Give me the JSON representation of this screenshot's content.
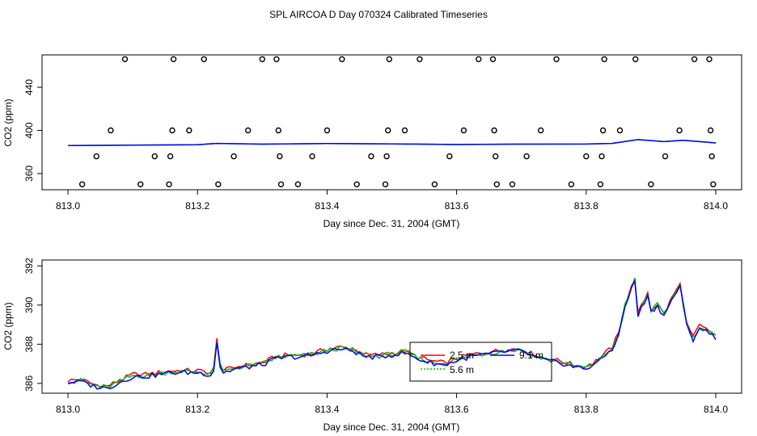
{
  "title": "SPL AIRCOA D  Day 070324  Calibrated Timeseries",
  "colors": {
    "series_2_5m": "#ff0000",
    "series_5_6m": "#00c000",
    "series_9_1m": "#0000ff",
    "points": "#000000"
  },
  "chart_data": [
    {
      "type": "scatter",
      "xlabel": "Day since Dec. 31, 2004 (GMT)",
      "ylabel": "CO2 (ppm)",
      "xlim": [
        813.0,
        814.0
      ],
      "ylim": [
        345,
        470
      ],
      "x_ticks": [
        "813.0",
        "813.2",
        "813.4",
        "813.6",
        "813.8",
        "814.0"
      ],
      "y_ticks": [
        "360",
        "400",
        "440"
      ],
      "grid": false,
      "series_line": {
        "x": [
          813.0,
          813.1,
          813.2,
          813.23,
          813.3,
          813.4,
          813.5,
          813.6,
          813.7,
          813.8,
          813.84,
          813.88,
          813.92,
          813.95,
          814.0
        ],
        "y": [
          386.0,
          386.3,
          386.8,
          388.0,
          387.3,
          387.8,
          387.5,
          386.9,
          387.3,
          387.4,
          388.0,
          391.5,
          389.6,
          390.8,
          388.4
        ]
      },
      "points": [
        {
          "x": 813.022,
          "y": 350
        },
        {
          "x": 813.044,
          "y": 376
        },
        {
          "x": 813.066,
          "y": 400
        },
        {
          "x": 813.088,
          "y": 466
        },
        {
          "x": 813.112,
          "y": 350
        },
        {
          "x": 813.134,
          "y": 376
        },
        {
          "x": 813.156,
          "y": 350
        },
        {
          "x": 813.158,
          "y": 376
        },
        {
          "x": 813.161,
          "y": 400
        },
        {
          "x": 813.163,
          "y": 466
        },
        {
          "x": 813.187,
          "y": 400
        },
        {
          "x": 813.21,
          "y": 466
        },
        {
          "x": 813.232,
          "y": 350
        },
        {
          "x": 813.256,
          "y": 376
        },
        {
          "x": 813.278,
          "y": 400
        },
        {
          "x": 813.3,
          "y": 466
        },
        {
          "x": 813.322,
          "y": 466
        },
        {
          "x": 813.325,
          "y": 400
        },
        {
          "x": 813.327,
          "y": 376
        },
        {
          "x": 813.329,
          "y": 350
        },
        {
          "x": 813.355,
          "y": 350
        },
        {
          "x": 813.377,
          "y": 376
        },
        {
          "x": 813.4,
          "y": 400
        },
        {
          "x": 813.423,
          "y": 466
        },
        {
          "x": 813.446,
          "y": 350
        },
        {
          "x": 813.468,
          "y": 376
        },
        {
          "x": 813.49,
          "y": 350
        },
        {
          "x": 813.492,
          "y": 376
        },
        {
          "x": 813.494,
          "y": 400
        },
        {
          "x": 813.496,
          "y": 466
        },
        {
          "x": 813.52,
          "y": 400
        },
        {
          "x": 813.543,
          "y": 466
        },
        {
          "x": 813.566,
          "y": 350
        },
        {
          "x": 813.589,
          "y": 376
        },
        {
          "x": 813.611,
          "y": 400
        },
        {
          "x": 813.634,
          "y": 466
        },
        {
          "x": 813.656,
          "y": 466
        },
        {
          "x": 813.658,
          "y": 400
        },
        {
          "x": 813.66,
          "y": 376
        },
        {
          "x": 813.662,
          "y": 350
        },
        {
          "x": 813.686,
          "y": 350
        },
        {
          "x": 813.708,
          "y": 376
        },
        {
          "x": 813.73,
          "y": 400
        },
        {
          "x": 813.754,
          "y": 466
        },
        {
          "x": 813.777,
          "y": 350
        },
        {
          "x": 813.8,
          "y": 376
        },
        {
          "x": 813.822,
          "y": 350
        },
        {
          "x": 813.824,
          "y": 376
        },
        {
          "x": 813.826,
          "y": 400
        },
        {
          "x": 813.828,
          "y": 466
        },
        {
          "x": 813.852,
          "y": 400
        },
        {
          "x": 813.876,
          "y": 466
        },
        {
          "x": 813.9,
          "y": 350
        },
        {
          "x": 813.922,
          "y": 376
        },
        {
          "x": 813.944,
          "y": 400
        },
        {
          "x": 813.967,
          "y": 466
        },
        {
          "x": 813.99,
          "y": 466
        },
        {
          "x": 813.992,
          "y": 400
        },
        {
          "x": 813.994,
          "y": 376
        },
        {
          "x": 813.996,
          "y": 350
        }
      ]
    },
    {
      "type": "line",
      "xlabel": "Day since Dec. 31, 2004 (GMT)",
      "ylabel": "CO2 (ppm)",
      "xlim": [
        813.0,
        814.0
      ],
      "ylim": [
        385.5,
        392.3
      ],
      "x_ticks": [
        "813.0",
        "813.2",
        "813.4",
        "813.6",
        "813.8",
        "814.0"
      ],
      "y_ticks": [
        "386",
        "388",
        "390",
        "392"
      ],
      "grid": false,
      "legend": {
        "placement": "center",
        "entries": [
          "2.5 m",
          "5.6 m",
          "9.1 m"
        ]
      },
      "anchors": [
        [
          813.0,
          386.1
        ],
        [
          813.02,
          386.15
        ],
        [
          813.04,
          385.9
        ],
        [
          813.06,
          385.8
        ],
        [
          813.08,
          386.1
        ],
        [
          813.1,
          386.4
        ],
        [
          813.12,
          386.4
        ],
        [
          813.14,
          386.5
        ],
        [
          813.16,
          386.6
        ],
        [
          813.18,
          386.6
        ],
        [
          813.2,
          386.6
        ],
        [
          813.22,
          386.5
        ],
        [
          813.225,
          386.7
        ],
        [
          813.23,
          388.2
        ],
        [
          813.235,
          386.9
        ],
        [
          813.24,
          386.6
        ],
        [
          813.26,
          386.8
        ],
        [
          813.28,
          386.9
        ],
        [
          813.3,
          387.0
        ],
        [
          813.32,
          387.3
        ],
        [
          813.34,
          387.4
        ],
        [
          813.36,
          387.4
        ],
        [
          813.38,
          387.5
        ],
        [
          813.4,
          387.7
        ],
        [
          813.42,
          387.8
        ],
        [
          813.44,
          387.7
        ],
        [
          813.46,
          387.4
        ],
        [
          813.48,
          387.4
        ],
        [
          813.5,
          387.5
        ],
        [
          813.52,
          387.6
        ],
        [
          813.54,
          387.3
        ],
        [
          813.56,
          387.1
        ],
        [
          813.58,
          387.0
        ],
        [
          813.6,
          387.2
        ],
        [
          813.62,
          387.4
        ],
        [
          813.64,
          387.5
        ],
        [
          813.66,
          387.6
        ],
        [
          813.68,
          387.7
        ],
        [
          813.7,
          387.7
        ],
        [
          813.72,
          387.4
        ],
        [
          813.74,
          387.2
        ],
        [
          813.76,
          387.1
        ],
        [
          813.78,
          386.9
        ],
        [
          813.8,
          386.8
        ],
        [
          813.82,
          387.2
        ],
        [
          813.84,
          387.8
        ],
        [
          813.85,
          388.5
        ],
        [
          813.86,
          390.0
        ],
        [
          813.875,
          391.3
        ],
        [
          813.88,
          389.5
        ],
        [
          813.895,
          390.6
        ],
        [
          813.9,
          389.7
        ],
        [
          813.91,
          390.0
        ],
        [
          813.92,
          389.5
        ],
        [
          813.935,
          390.5
        ],
        [
          813.945,
          391.0
        ],
        [
          813.955,
          389.0
        ],
        [
          813.965,
          388.3
        ],
        [
          813.975,
          388.9
        ],
        [
          813.99,
          388.6
        ],
        [
          814.0,
          388.4
        ]
      ],
      "series": [
        {
          "name": "2.5 m",
          "color": "#ff0000",
          "offset": 0.05
        },
        {
          "name": "5.6 m",
          "color": "#00c000",
          "offset": 0.0
        },
        {
          "name": "9.1 m",
          "color": "#0000ff",
          "offset": -0.05
        }
      ]
    }
  ]
}
